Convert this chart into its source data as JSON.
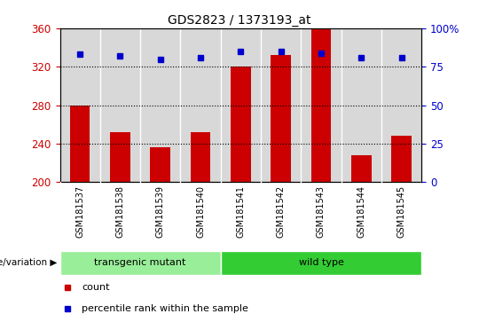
{
  "title": "GDS2823 / 1373193_at",
  "samples": [
    "GSM181537",
    "GSM181538",
    "GSM181539",
    "GSM181540",
    "GSM181541",
    "GSM181542",
    "GSM181543",
    "GSM181544",
    "GSM181545"
  ],
  "counts": [
    280,
    252,
    236,
    252,
    320,
    332,
    360,
    228,
    248
  ],
  "percentile_ranks": [
    83,
    82,
    80,
    81,
    85,
    85,
    84,
    81,
    81
  ],
  "ylim_left": [
    200,
    360
  ],
  "ylim_right": [
    0,
    100
  ],
  "yticks_left": [
    200,
    240,
    280,
    320,
    360
  ],
  "yticks_right": [
    0,
    25,
    50,
    75,
    100
  ],
  "bar_color": "#cc0000",
  "dot_color": "#0000cc",
  "bar_bottom": 200,
  "groups": [
    {
      "label": "transgenic mutant",
      "start": 0,
      "end": 4,
      "color": "#99ee99"
    },
    {
      "label": "wild type",
      "start": 4,
      "end": 9,
      "color": "#33cc33"
    }
  ],
  "group_label": "genotype/variation",
  "legend_items": [
    {
      "color": "#cc0000",
      "label": "count"
    },
    {
      "color": "#0000cc",
      "label": "percentile rank within the sample"
    }
  ],
  "tick_label_color_left": "#cc0000",
  "tick_label_color_right": "#0000cc",
  "col_bg_color": "#d8d8d8",
  "plot_bg": "#ffffff",
  "grid_color": "#000000",
  "dotted_gridlines": [
    240,
    280,
    320
  ],
  "bar_width": 0.5
}
